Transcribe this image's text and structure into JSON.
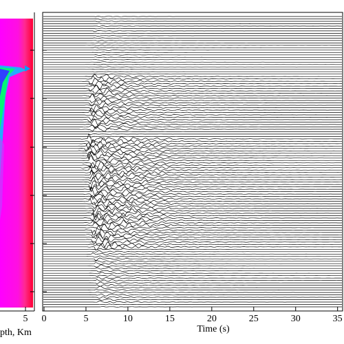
{
  "chart_data": [
    {
      "type": "image",
      "xlabel": "pth, Km",
      "xlim": [
        2.3,
        5.8
      ],
      "xticks": [
        5
      ]
    },
    {
      "type": "wiggle",
      "xlabel": "Time (s)",
      "xlim": [
        0,
        35.6
      ],
      "xticks": [
        0,
        5,
        10,
        15,
        20,
        25,
        30,
        35
      ]
    }
  ]
}
